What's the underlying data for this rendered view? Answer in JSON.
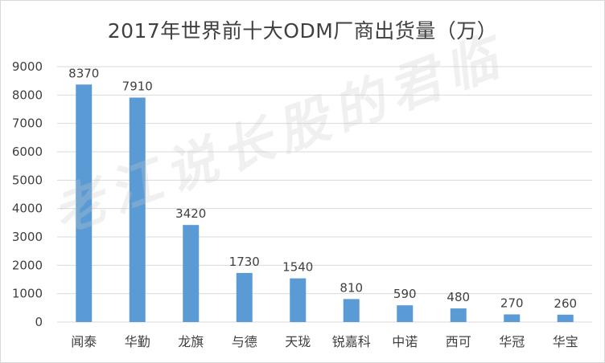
{
  "chart_data": {
    "type": "bar",
    "title": "2017年世界前十大ODM厂商出货量（万）",
    "categories": [
      "闻泰",
      "华勤",
      "龙旗",
      "与德",
      "天珑",
      "锐嘉科",
      "中诺",
      "西可",
      "华冠",
      "华宝"
    ],
    "values": [
      8370,
      7910,
      3420,
      1730,
      1540,
      810,
      590,
      480,
      270,
      260
    ],
    "data_labels": [
      "8370",
      "7910",
      "3420",
      "1730",
      "1540",
      "810",
      "590",
      "480",
      "270",
      "260"
    ],
    "ylim": [
      0,
      9000
    ],
    "yticks": [
      0,
      1000,
      2000,
      3000,
      4000,
      5000,
      6000,
      7000,
      8000,
      9000
    ],
    "ytick_labels": [
      "0",
      "1000",
      "2000",
      "3000",
      "4000",
      "5000",
      "6000",
      "7000",
      "8000",
      "9000"
    ],
    "grid": true,
    "legend": "none",
    "bar_color": "#5B9BD5",
    "grid_color": "#d9d9d9",
    "text_color": "#404040"
  },
  "watermark": {
    "text": "老江说长股的君临"
  }
}
